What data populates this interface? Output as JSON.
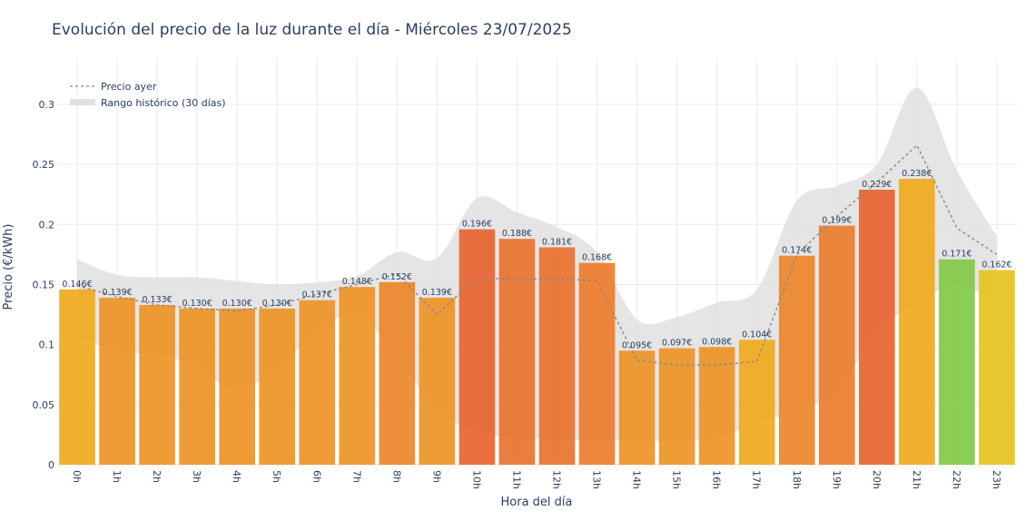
{
  "chart_data": {
    "type": "bar",
    "title": "Evolución del precio de la luz durante el día - Miércoles 23/07/2025",
    "xlabel": "Hora del día",
    "ylabel": "Precio (€/kWh)",
    "ylim": [
      0,
      0.33
    ],
    "yticks": [
      "0",
      "0.05",
      "0.1",
      "0.15",
      "0.2",
      "0.25",
      "0.3"
    ],
    "categories": [
      "0h",
      "1h",
      "2h",
      "3h",
      "4h",
      "5h",
      "6h",
      "7h",
      "8h",
      "9h",
      "10h",
      "11h",
      "12h",
      "13h",
      "14h",
      "15h",
      "16h",
      "17h",
      "18h",
      "19h",
      "20h",
      "21h",
      "22h",
      "23h"
    ],
    "values": [
      0.146,
      0.139,
      0.133,
      0.13,
      0.13,
      0.13,
      0.137,
      0.148,
      0.152,
      0.139,
      0.196,
      0.188,
      0.181,
      0.168,
      0.095,
      0.097,
      0.098,
      0.104,
      0.174,
      0.199,
      0.229,
      0.238,
      0.171,
      0.162
    ],
    "labels": [
      "0.146€",
      "0.139€",
      "0.133€",
      "0.130€",
      "0.130€",
      "0.130€",
      "0.137€",
      "0.148€",
      "0.152€",
      "0.139€",
      "0.196€",
      "0.188€",
      "0.181€",
      "0.168€",
      "0.095€",
      "0.097€",
      "0.098€",
      "0.104€",
      "0.174€",
      "0.199€",
      "0.229€",
      "0.238€",
      "0.171€",
      "0.162€"
    ],
    "colors": [
      "#f0a818",
      "#ed9121",
      "#ed9121",
      "#ed9121",
      "#ed9121",
      "#ed9121",
      "#ed9121",
      "#ed9121",
      "#ec8326",
      "#ed9121",
      "#e8612e",
      "#e8702a",
      "#e8702a",
      "#ec7a28",
      "#ed9121",
      "#ed9121",
      "#ed9121",
      "#f0a818",
      "#ec8326",
      "#ea7a28",
      "#e8612e",
      "#f0a818",
      "#7ec843",
      "#e6c21a"
    ],
    "series": [
      {
        "name": "Precio ayer",
        "type": "line",
        "style": "dotted",
        "color": "#888888",
        "values": [
          0.149,
          0.14,
          0.133,
          0.13,
          0.128,
          0.133,
          0.142,
          0.15,
          0.159,
          0.125,
          0.156,
          0.154,
          0.155,
          0.153,
          0.087,
          0.083,
          0.083,
          0.086,
          0.175,
          0.207,
          0.235,
          0.266,
          0.197,
          0.175
        ]
      },
      {
        "name": "Rango histórico (30 días)",
        "type": "band",
        "color": "#e0e0e0",
        "upper": [
          0.171,
          0.158,
          0.156,
          0.156,
          0.153,
          0.15,
          0.152,
          0.157,
          0.177,
          0.172,
          0.222,
          0.21,
          0.198,
          0.177,
          0.121,
          0.123,
          0.135,
          0.146,
          0.22,
          0.232,
          0.25,
          0.314,
          0.245,
          0.19
        ],
        "lower": [
          0.107,
          0.095,
          0.091,
          0.082,
          0.061,
          0.081,
          0.11,
          0.125,
          0.09,
          0.045,
          0.028,
          0.022,
          0.021,
          0.02,
          0.02,
          0.02,
          0.022,
          0.035,
          0.045,
          0.062,
          0.11,
          0.135,
          0.15,
          0.135
        ]
      }
    ],
    "legend_position": "top-left",
    "grid": true
  },
  "colors": {
    "title": "#2a3f5f",
    "axis_text": "#2a3f5f",
    "grid": "#ebebeb"
  }
}
